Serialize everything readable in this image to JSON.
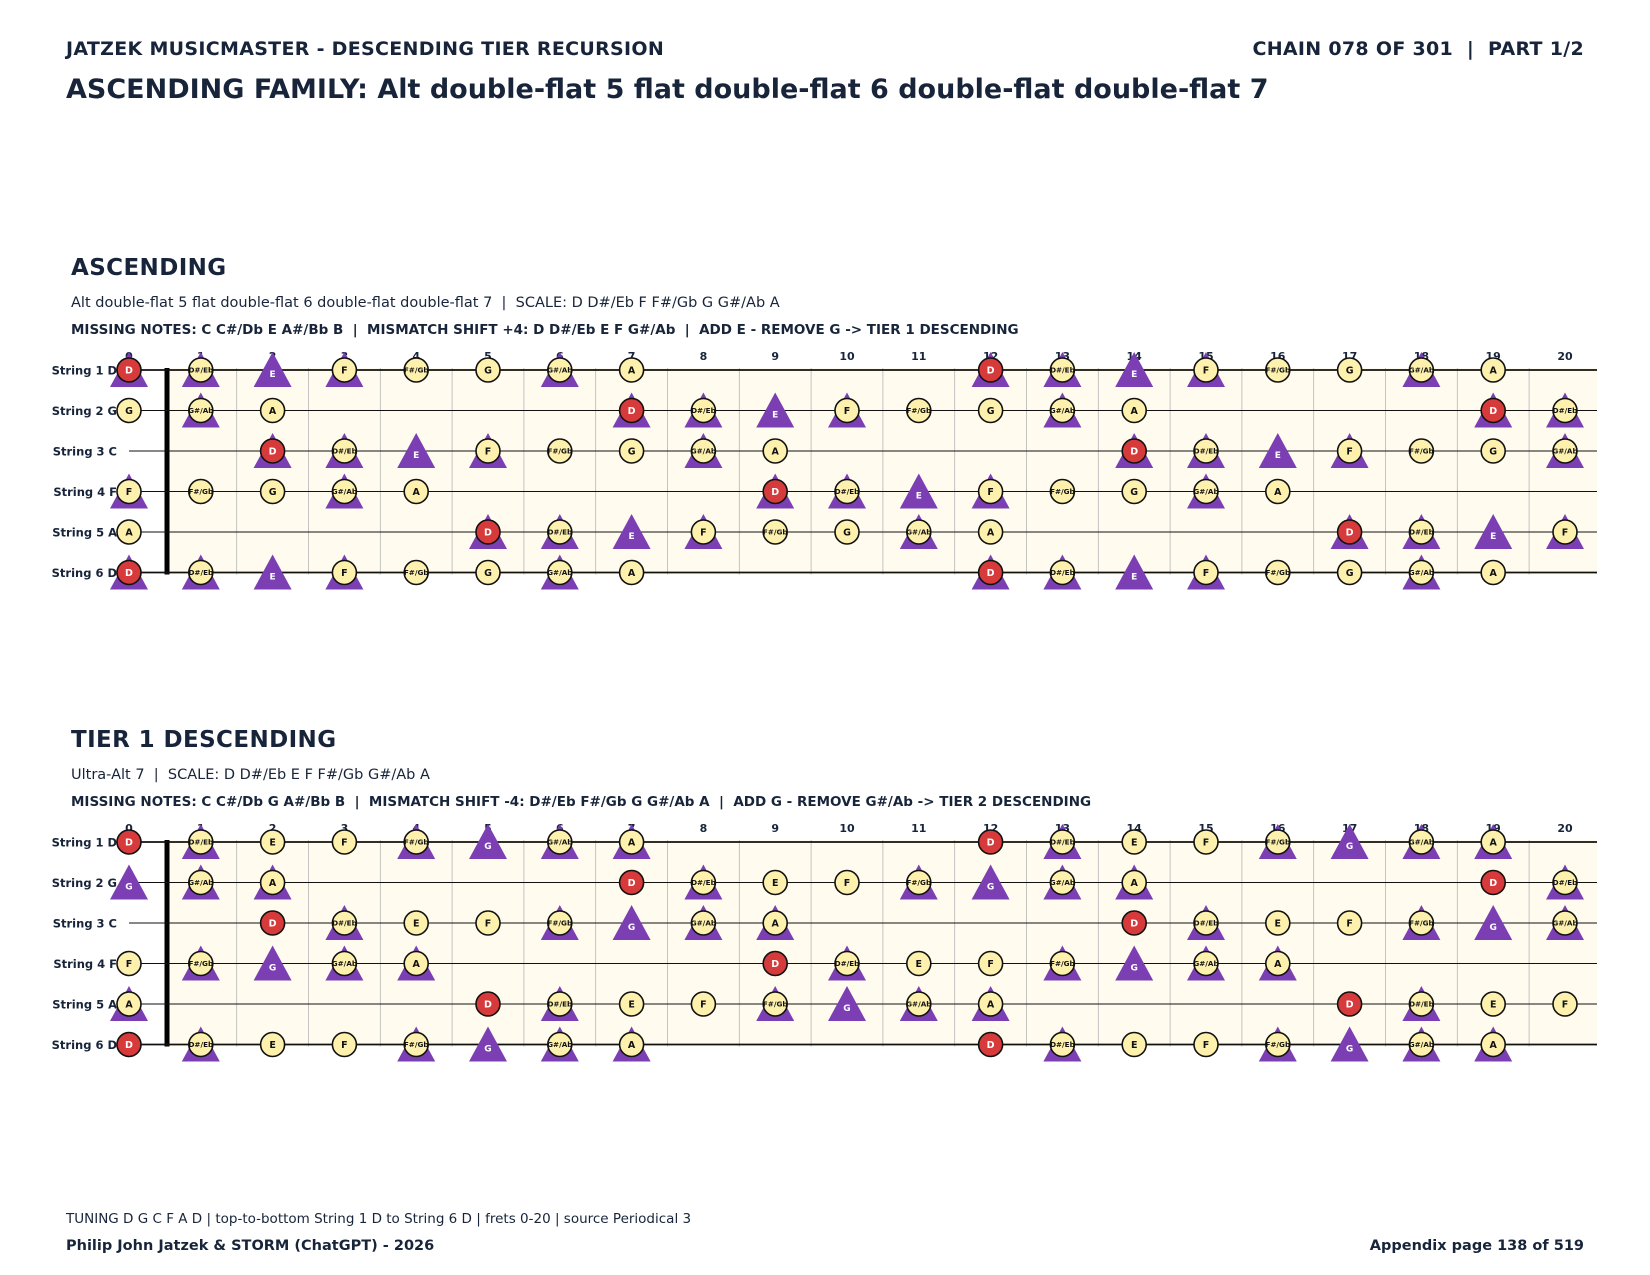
{
  "header": {
    "left": "JATZEK MUSICMASTER - DESCENDING TIER RECURSION",
    "right": "CHAIN 078 OF 301  |  PART 1/2",
    "title": "ASCENDING FAMILY: Alt double-flat 5 flat double-flat 6 double-flat double-flat 7"
  },
  "fretboard": {
    "string_labels": [
      "String 1 D",
      "String 2 G",
      "String 3 C",
      "String 4 F",
      "String 5 A",
      "String 6 D"
    ],
    "open_notes": [
      "D",
      "G",
      "C",
      "F",
      "A",
      "D"
    ],
    "frets": [
      0,
      1,
      2,
      3,
      4,
      5,
      6,
      7,
      8,
      9,
      10,
      11,
      12,
      13,
      14,
      15,
      16,
      17,
      18,
      19,
      20
    ],
    "chromatic": [
      "C",
      "C#/Db",
      "D",
      "D#/Eb",
      "E",
      "F",
      "F#/Gb",
      "G",
      "G#/Ab",
      "A",
      "A#/Bb",
      "B"
    ]
  },
  "sections": [
    {
      "title": "ASCENDING",
      "subtitle": "Alt double-flat 5 flat double-flat 6 double-flat double-flat 7  |  SCALE: D D#/Eb F F#/Gb G G#/Ab A",
      "missing": "MISSING NOTES: C C#/Db E A#/Bb B  |  MISMATCH SHIFT +4: D D#/Eb E F G#/Ab  |  ADD E - REMOVE G -> TIER 1 DESCENDING",
      "root": "D",
      "circle_notes": [
        "D",
        "D#/Eb",
        "F",
        "F#/Gb",
        "G",
        "G#/Ab",
        "A"
      ],
      "triangle_notes": [
        "D",
        "D#/Eb",
        "E",
        "F",
        "G#/Ab"
      ],
      "triangle_only_label": "E"
    },
    {
      "title": "TIER 1 DESCENDING",
      "subtitle": "Ultra-Alt 7  |  SCALE: D D#/Eb E F F#/Gb G#/Ab A",
      "missing": "MISSING NOTES: C C#/Db G A#/Bb B  |  MISMATCH SHIFT -4: D#/Eb F#/Gb G G#/Ab A  |  ADD G - REMOVE G#/Ab -> TIER 2 DESCENDING",
      "root": "D",
      "circle_notes": [
        "D",
        "D#/Eb",
        "E",
        "F",
        "F#/Gb",
        "G#/Ab",
        "A"
      ],
      "triangle_notes": [
        "D#/Eb",
        "F#/Gb",
        "G",
        "G#/Ab",
        "A"
      ],
      "triangle_only_label": "G"
    }
  ],
  "colors": {
    "ink": "#17243a",
    "board": "#fffcef",
    "circle_fill": "#fdf1ad",
    "root_fill": "#d63a3a",
    "triangle_fill": "#7b3fb3"
  },
  "footer": {
    "note": "TUNING D G C F A D | top-to-bottom String 1 D to String 6 D | frets 0-20 | source Periodical 3",
    "left": "Philip John Jatzek & STORM (ChatGPT) - 2026",
    "right": "Appendix page 138 of 519"
  }
}
